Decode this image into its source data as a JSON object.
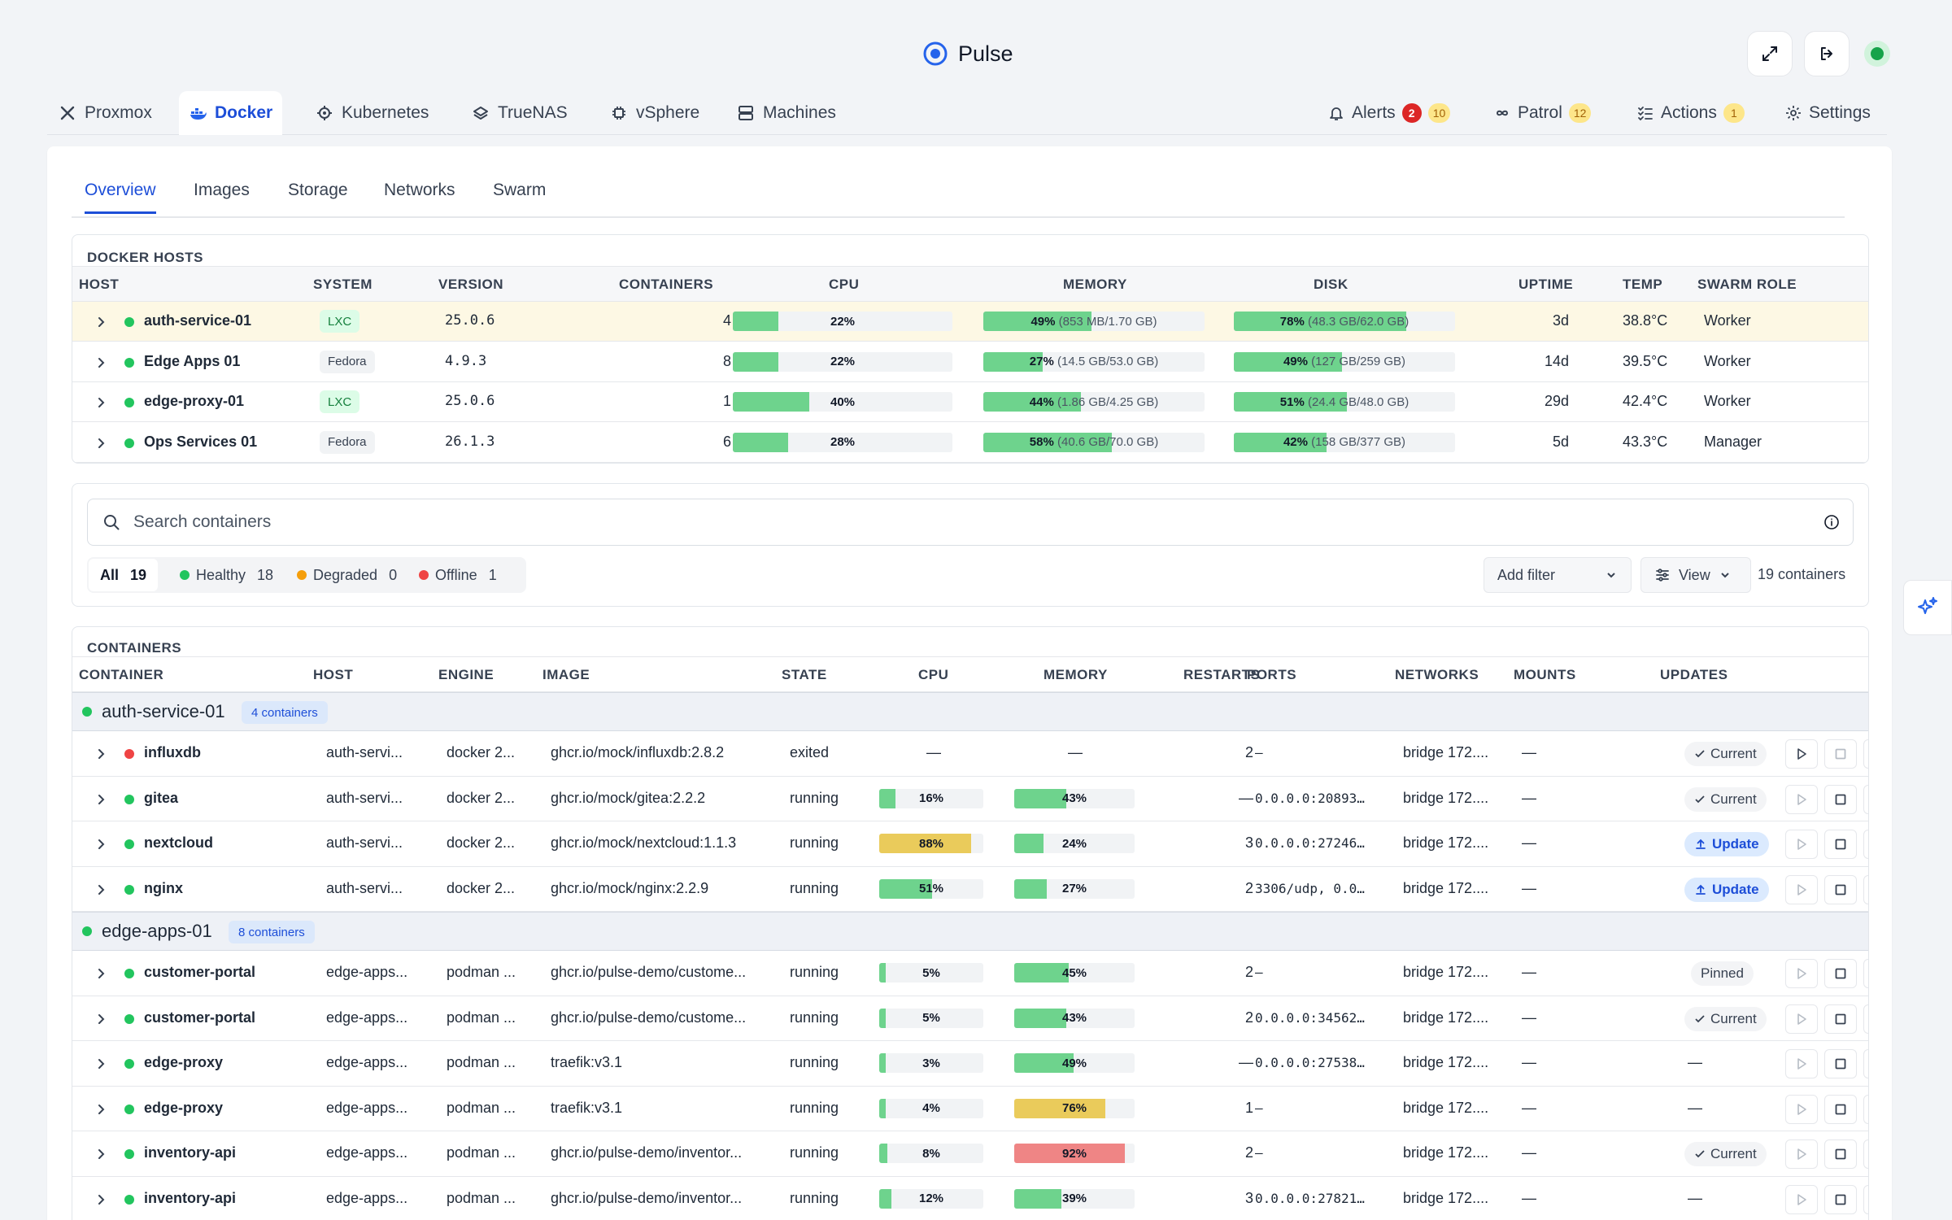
{
  "app": {
    "title": "Pulse"
  },
  "nav": {
    "left_tabs": [
      {
        "label": "Proxmox",
        "icon": "proxmox-icon"
      },
      {
        "label": "Docker",
        "icon": "docker-icon",
        "active": true
      },
      {
        "label": "Kubernetes",
        "icon": "helm-icon"
      },
      {
        "label": "TrueNAS",
        "icon": "truenas-icon"
      },
      {
        "label": "vSphere",
        "icon": "chip-icon"
      },
      {
        "label": "Machines",
        "icon": "server-icon"
      }
    ],
    "right_tabs": [
      {
        "label": "Alerts",
        "icon": "bell-icon",
        "badge_red": "2",
        "badge_yellow": "10"
      },
      {
        "label": "Patrol",
        "icon": "infinity-icon",
        "badge_yellow": "12"
      },
      {
        "label": "Actions",
        "icon": "checklist-icon",
        "badge_yellow": "1"
      },
      {
        "label": "Settings",
        "icon": "gear-icon"
      }
    ]
  },
  "subtabs": [
    "Overview",
    "Images",
    "Storage",
    "Networks",
    "Swarm"
  ],
  "hosts_panel": {
    "title": "DOCKER HOSTS",
    "columns": [
      "HOST",
      "SYSTEM",
      "VERSION",
      "CONTAINERS",
      "CPU",
      "MEMORY",
      "DISK",
      "UPTIME",
      "TEMP",
      "SWARM ROLE"
    ],
    "rows": [
      {
        "host": "auth-service-01",
        "system": "LXC",
        "version": "25.0.6",
        "containers": "4",
        "cpu": "22%",
        "cpu_pct": 22,
        "mem_pct_label": "49%",
        "mem_detail": "(853 MB/1.70 GB)",
        "mem_pct": 49,
        "disk_pct_label": "78%",
        "disk_detail": "(48.3 GB/62.0 GB)",
        "disk_pct": 78,
        "uptime": "3d",
        "temp": "38.8°C",
        "role": "Worker"
      },
      {
        "host": "Edge Apps 01",
        "system": "Fedora",
        "version": "4.9.3",
        "containers": "8",
        "cpu": "22%",
        "cpu_pct": 22,
        "mem_pct_label": "27%",
        "mem_detail": "(14.5 GB/53.0 GB)",
        "mem_pct": 27,
        "disk_pct_label": "49%",
        "disk_detail": "(127 GB/259 GB)",
        "disk_pct": 49,
        "uptime": "14d",
        "temp": "39.5°C",
        "role": "Worker"
      },
      {
        "host": "edge-proxy-01",
        "system": "LXC",
        "version": "25.0.6",
        "containers": "1",
        "cpu": "40%",
        "cpu_pct": 40,
        "mem_pct_label": "44%",
        "mem_detail": "(1.86 GB/4.25 GB)",
        "mem_pct": 44,
        "disk_pct_label": "51%",
        "disk_detail": "(24.4 GB/48.0 GB)",
        "disk_pct": 51,
        "uptime": "29d",
        "temp": "42.4°C",
        "role": "Worker"
      },
      {
        "host": "Ops Services 01",
        "system": "Fedora",
        "version": "26.1.3",
        "containers": "6",
        "cpu": "28%",
        "cpu_pct": 28,
        "mem_pct_label": "58%",
        "mem_detail": "(40.6 GB/70.0 GB)",
        "mem_pct": 58,
        "disk_pct_label": "42%",
        "disk_detail": "(158 GB/377 GB)",
        "disk_pct": 42,
        "uptime": "5d",
        "temp": "43.3°C",
        "role": "Manager"
      }
    ]
  },
  "filters": {
    "search_placeholder": "Search containers",
    "segments": [
      {
        "label": "All",
        "count": "19"
      },
      {
        "label": "Healthy",
        "count": "18"
      },
      {
        "label": "Degraded",
        "count": "0"
      },
      {
        "label": "Offline",
        "count": "1"
      }
    ],
    "add_filter": "Add filter",
    "view": "View",
    "total": "19 containers"
  },
  "containers_panel": {
    "title": "CONTAINERS",
    "columns": [
      "CONTAINER",
      "HOST",
      "ENGINE",
      "IMAGE",
      "STATE",
      "CPU",
      "MEMORY",
      "RESTARTS",
      "PORTS",
      "NETWORKS",
      "MOUNTS",
      "UPDATES"
    ],
    "groups": [
      {
        "name": "auth-service-01",
        "count": "4 containers",
        "rows": [
          {
            "name": "influxdb",
            "status": "red",
            "host": "auth-servi...",
            "engine": "docker 2...",
            "image": "ghcr.io/mock/influxdb:2.8.2",
            "state": "exited",
            "cpu": "—",
            "mem": "—",
            "restarts": "2",
            "ports": "–",
            "networks": "bridge 172....",
            "mounts": "—",
            "update": "Current",
            "update_type": "cur",
            "play_active": true
          },
          {
            "name": "gitea",
            "status": "green",
            "host": "auth-servi...",
            "engine": "docker 2...",
            "image": "ghcr.io/mock/gitea:2.2.2",
            "state": "running",
            "cpu": "16%",
            "cpu_pct": 16,
            "mem": "43%",
            "mem_pct": 43,
            "restarts": "—",
            "ports": "0.0.0.0:20893…",
            "networks": "bridge 172....",
            "mounts": "—",
            "update": "Current",
            "update_type": "cur"
          },
          {
            "name": "nextcloud",
            "status": "green",
            "host": "auth-servi...",
            "engine": "docker 2...",
            "image": "ghcr.io/mock/nextcloud:1.1.3",
            "state": "running",
            "cpu": "88%",
            "cpu_pct": 88,
            "mem": "24%",
            "mem_pct": 24,
            "restarts": "3",
            "ports": "0.0.0.0:27246…",
            "networks": "bridge 172....",
            "mounts": "—",
            "update": "Update",
            "update_type": "up"
          },
          {
            "name": "nginx",
            "status": "green",
            "host": "auth-servi...",
            "engine": "docker 2...",
            "image": "ghcr.io/mock/nginx:2.2.9",
            "state": "running",
            "cpu": "51%",
            "cpu_pct": 51,
            "mem": "27%",
            "mem_pct": 27,
            "restarts": "2",
            "ports": "3306/udp, 0.0…",
            "networks": "bridge 172....",
            "mounts": "—",
            "update": "Update",
            "update_type": "up"
          }
        ]
      },
      {
        "name": "edge-apps-01",
        "count": "8 containers",
        "rows": [
          {
            "name": "customer-portal",
            "status": "green",
            "host": "edge-apps...",
            "engine": "podman ...",
            "image": "ghcr.io/pulse-demo/custome...",
            "state": "running",
            "cpu": "5%",
            "cpu_pct": 5,
            "mem": "45%",
            "mem_pct": 45,
            "restarts": "2",
            "ports": "–",
            "networks": "bridge 172....",
            "mounts": "—",
            "update": "Pinned",
            "update_type": "pin"
          },
          {
            "name": "customer-portal",
            "status": "green",
            "host": "edge-apps...",
            "engine": "podman ...",
            "image": "ghcr.io/pulse-demo/custome...",
            "state": "running",
            "cpu": "5%",
            "cpu_pct": 5,
            "mem": "43%",
            "mem_pct": 43,
            "restarts": "2",
            "ports": "0.0.0.0:34562…",
            "networks": "bridge 172....",
            "mounts": "—",
            "update": "Current",
            "update_type": "cur"
          },
          {
            "name": "edge-proxy",
            "status": "green",
            "host": "edge-apps...",
            "engine": "podman ...",
            "image": "traefik:v3.1",
            "state": "running",
            "cpu": "3%",
            "cpu_pct": 3,
            "mem": "49%",
            "mem_pct": 49,
            "restarts": "—",
            "ports": "0.0.0.0:27538…",
            "networks": "bridge 172....",
            "mounts": "—",
            "update": "—",
            "update_type": "none"
          },
          {
            "name": "edge-proxy",
            "status": "green",
            "host": "edge-apps...",
            "engine": "podman ...",
            "image": "traefik:v3.1",
            "state": "running",
            "cpu": "4%",
            "cpu_pct": 4,
            "mem": "76%",
            "mem_pct": 76,
            "restarts": "1",
            "ports": "–",
            "networks": "bridge 172....",
            "mounts": "—",
            "update": "—",
            "update_type": "none"
          },
          {
            "name": "inventory-api",
            "status": "green",
            "host": "edge-apps...",
            "engine": "podman ...",
            "image": "ghcr.io/pulse-demo/inventor...",
            "state": "running",
            "cpu": "8%",
            "cpu_pct": 8,
            "mem": "92%",
            "mem_pct": 92,
            "restarts": "2",
            "ports": "–",
            "networks": "bridge 172....",
            "mounts": "—",
            "update": "Current",
            "update_type": "cur"
          },
          {
            "name": "inventory-api",
            "status": "green",
            "host": "edge-apps...",
            "engine": "podman ...",
            "image": "ghcr.io/pulse-demo/inventor...",
            "state": "running",
            "cpu": "12%",
            "cpu_pct": 12,
            "mem": "39%",
            "mem_pct": 39,
            "restarts": "3",
            "ports": "0.0.0.0:27821…",
            "networks": "bridge 172....",
            "mounts": "—",
            "update": "—",
            "update_type": "none"
          }
        ]
      }
    ]
  },
  "colors": {
    "accent": "#1d4ed8",
    "ok": "#22c55e",
    "warn": "#f59e0b",
    "error": "#ef4444",
    "bar_ok": "#6ed38d",
    "bar_warn": "#eacb5b",
    "bar_crit": "#ef8585"
  }
}
